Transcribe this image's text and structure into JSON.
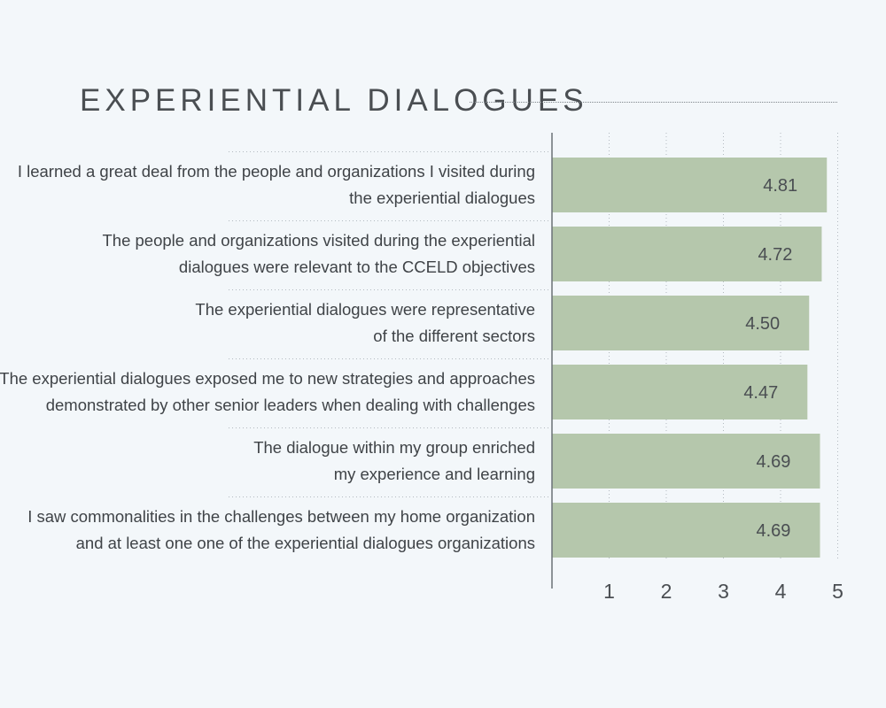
{
  "title": "EXPERIENTIAL DIALOGUES",
  "colors": {
    "background": "#f3f7fa",
    "bar": "#b5c7ac",
    "text": "#3f4347",
    "gridline": "#b3bac0",
    "axis": "#6b7176"
  },
  "chart_data": {
    "type": "bar",
    "orientation": "horizontal",
    "title": "EXPERIENTIAL DIALOGUES",
    "categories": [
      [
        "I learned a great deal from the people and organizations I visited during",
        "the experiential dialogues"
      ],
      [
        "The people and organizations visited during the experiential",
        "dialogues were relevant to the CCELD objectives"
      ],
      [
        "The experiential dialogues were representative",
        "of the different sectors"
      ],
      [
        "The experiential dialogues exposed me to new strategies and approaches",
        "demonstrated by other senior leaders when dealing with challenges"
      ],
      [
        "The dialogue within my group enriched",
        "my experience and learning"
      ],
      [
        "I saw commonalities in the challenges between my home organization",
        "and at least one one of the experiential dialogues organizations"
      ]
    ],
    "values": [
      4.81,
      4.72,
      4.5,
      4.47,
      4.69,
      4.69
    ],
    "value_labels": [
      "4.81",
      "4.72",
      "4.50",
      "4.47",
      "4.69",
      "4.69"
    ],
    "xlim": [
      0,
      5
    ],
    "ticks": [
      1,
      2,
      3,
      4,
      5
    ],
    "tick_labels": [
      "1",
      "2",
      "3",
      "4",
      "5"
    ],
    "grid": "vertical dotted",
    "xlabel": "",
    "ylabel": ""
  }
}
